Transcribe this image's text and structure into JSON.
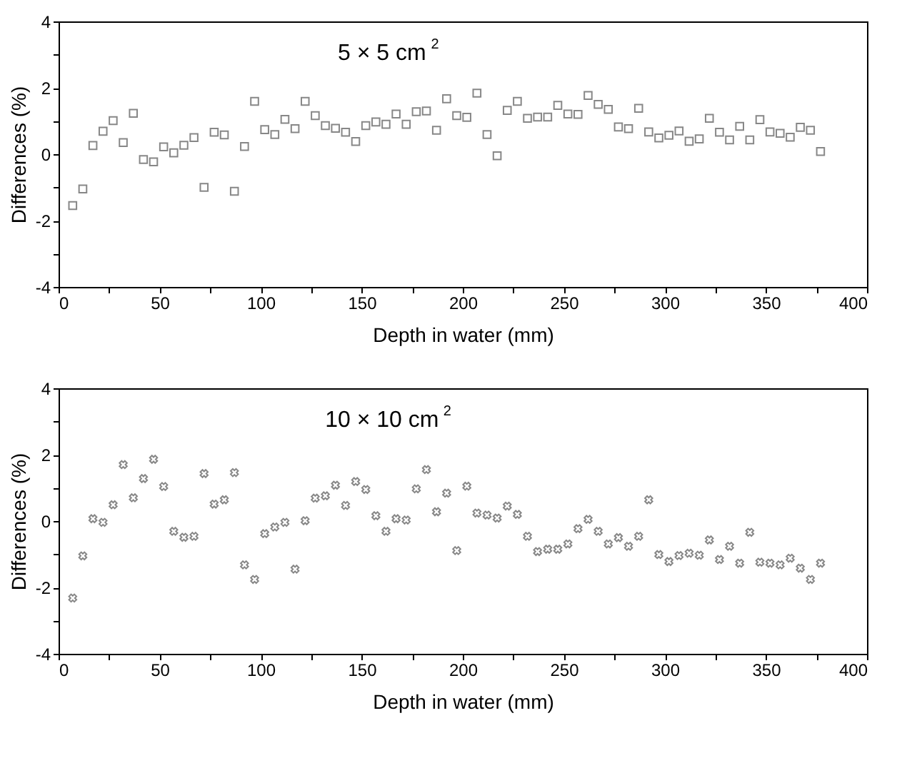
{
  "chart_data": [
    {
      "type": "scatter",
      "title": "5 × 5 cm$^{2}$",
      "xlabel": "Depth in water (mm)",
      "ylabel": "Differences (%)",
      "marker": "square",
      "grid": false,
      "legend": false,
      "x": [
        7,
        12,
        17,
        22,
        27,
        32,
        37,
        42,
        47,
        52,
        57,
        62,
        67,
        72,
        77,
        82,
        87,
        92,
        97,
        102,
        107,
        112,
        117,
        122,
        127,
        132,
        137,
        142,
        147,
        152,
        157,
        162,
        167,
        172,
        177,
        182,
        187,
        192,
        197,
        202,
        207,
        212,
        217,
        222,
        227,
        232,
        237,
        242,
        247,
        252,
        257,
        262,
        267,
        272,
        277,
        282,
        287,
        292,
        297,
        302,
        307,
        312,
        317,
        322,
        327,
        332,
        337,
        342,
        347,
        352,
        357,
        362,
        367,
        372,
        377
      ],
      "series": [
        {
          "color": "#555555",
          "values": [
            -1.55,
            -1.05,
            0.26,
            0.69,
            1.01,
            0.35,
            1.23,
            -0.16,
            -0.23,
            0.22,
            0.04,
            0.27,
            0.5,
            -1.0,
            0.66,
            0.58,
            -1.12,
            0.23,
            1.59,
            0.74,
            0.59,
            1.05,
            0.77,
            1.59,
            1.16,
            0.86,
            0.78,
            0.66,
            0.38,
            0.86,
            0.97,
            0.9,
            1.21,
            0.9,
            1.28,
            1.3,
            0.72,
            1.67,
            1.16,
            1.11,
            1.84,
            0.59,
            -0.05,
            1.32,
            1.59,
            1.08,
            1.12,
            1.12,
            1.47,
            1.21,
            1.2,
            1.77,
            1.5,
            1.35,
            0.82,
            0.77,
            1.38,
            0.67,
            0.49,
            0.57,
            0.7,
            0.39,
            0.46,
            1.08,
            0.66,
            0.43,
            0.84,
            0.43,
            1.04,
            0.67,
            0.63,
            0.51,
            0.81,
            0.72,
            0.08
          ]
        }
      ],
      "xlim": [
        0,
        400
      ],
      "xticks": [
        0,
        {
          "value": 25,
          "label": null
        },
        50,
        {
          "value": 75,
          "label": null
        },
        100,
        {
          "value": 125,
          "label": null
        },
        150,
        {
          "value": 175,
          "label": null
        },
        200,
        {
          "value": 225,
          "label": null
        },
        250,
        {
          "value": 275,
          "label": null
        },
        300,
        {
          "value": 325,
          "label": null
        },
        350,
        {
          "value": 375,
          "label": null
        },
        400
      ],
      "ylim": [
        -4,
        4
      ],
      "yticks": [
        -4,
        {
          "value": -3,
          "label": null
        },
        -2,
        {
          "value": -1,
          "label": null
        },
        0,
        {
          "value": 1,
          "label": null
        },
        2,
        {
          "value": 3,
          "label": null
        },
        4
      ]
    },
    {
      "type": "scatter",
      "title": "10 × 10 cm$^{2}$",
      "xlabel": "Depth in water (mm)",
      "ylabel": "Differences (%)",
      "marker": "cross",
      "grid": false,
      "legend": false,
      "x": [
        7,
        12,
        17,
        22,
        27,
        32,
        37,
        42,
        47,
        52,
        57,
        62,
        67,
        72,
        77,
        82,
        87,
        92,
        97,
        102,
        107,
        112,
        117,
        122,
        127,
        132,
        137,
        142,
        147,
        152,
        157,
        162,
        167,
        172,
        177,
        182,
        187,
        192,
        197,
        202,
        207,
        212,
        217,
        222,
        227,
        232,
        237,
        242,
        247,
        252,
        257,
        262,
        267,
        272,
        277,
        282,
        287,
        292,
        297,
        302,
        307,
        312,
        317,
        322,
        327,
        332,
        337,
        342,
        347,
        352,
        357,
        362,
        367,
        372,
        377
      ],
      "series": [
        {
          "color": "#555555",
          "values": [
            -2.32,
            -1.05,
            0.07,
            -0.04,
            0.49,
            1.7,
            0.7,
            1.28,
            1.86,
            1.04,
            -0.31,
            -0.49,
            -0.46,
            1.43,
            0.51,
            0.64,
            1.46,
            -1.32,
            -1.76,
            -0.38,
            -0.18,
            -0.04,
            -1.45,
            0.01,
            0.69,
            0.76,
            1.08,
            0.47,
            1.19,
            0.95,
            0.16,
            -0.31,
            0.07,
            0.03,
            0.97,
            1.55,
            0.28,
            0.84,
            -0.89,
            1.05,
            0.24,
            0.18,
            0.09,
            0.45,
            0.2,
            -0.46,
            -0.92,
            -0.85,
            -0.85,
            -0.69,
            -0.23,
            0.05,
            -0.31,
            -0.69,
            -0.5,
            -0.76,
            -0.46,
            0.64,
            -1.01,
            -1.22,
            -1.04,
            -0.97,
            -1.03,
            -0.57,
            -1.16,
            -0.76,
            -1.27,
            -0.34,
            -1.24,
            -1.27,
            -1.32,
            -1.12,
            -1.42,
            -1.76,
            -1.27
          ]
        }
      ],
      "xlim": [
        0,
        400
      ],
      "xticks": [
        0,
        {
          "value": 25,
          "label": null
        },
        50,
        {
          "value": 75,
          "label": null
        },
        100,
        {
          "value": 125,
          "label": null
        },
        150,
        {
          "value": 175,
          "label": null
        },
        200,
        {
          "value": 225,
          "label": null
        },
        250,
        {
          "value": 275,
          "label": null
        },
        300,
        {
          "value": 325,
          "label": null
        },
        350,
        {
          "value": 375,
          "label": null
        },
        400
      ],
      "ylim": [
        -4,
        4
      ],
      "yticks": [
        -4,
        {
          "value": -3,
          "label": null
        },
        -2,
        {
          "value": -1,
          "label": null
        },
        0,
        {
          "value": 1,
          "label": null
        },
        2,
        {
          "value": 3,
          "label": null
        },
        4
      ]
    }
  ]
}
